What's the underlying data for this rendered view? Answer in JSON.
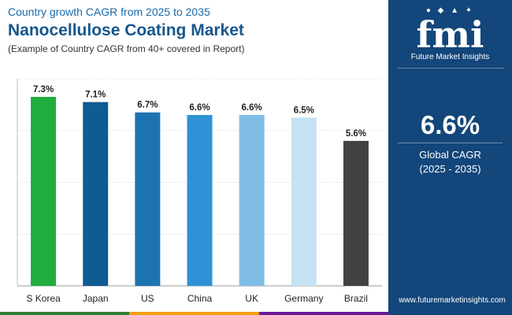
{
  "header": {
    "subtitle": "Country growth CAGR from 2025 to 2035",
    "title": "Nanocellulose Coating Market",
    "note": "(Example of Country CAGR from 40+ covered in Report)"
  },
  "brand": {
    "logo_mark": "fmi",
    "logo_text": "Future Market Insights",
    "website": "www.futuremarketinsights.com"
  },
  "summary": {
    "value": "6.6%",
    "label_line1": "Global CAGR",
    "label_line2": "(2025 - 2035)"
  },
  "colors": {
    "panel": "#13467a",
    "title": "#17578c",
    "strip": [
      "#2e7d32",
      "#f39c12",
      "#6a1b9a"
    ]
  },
  "chart_data": {
    "type": "bar",
    "title": "Nanocellulose Coating Market",
    "xlabel": "",
    "ylabel": "",
    "ylim": [
      0,
      8
    ],
    "grid": true,
    "categories": [
      "S Korea",
      "Japan",
      "US",
      "China",
      "UK",
      "Germany",
      "Brazil"
    ],
    "values": [
      7.3,
      7.1,
      6.7,
      6.6,
      6.6,
      6.5,
      5.6
    ],
    "data_labels": [
      "7.3%",
      "7.1%",
      "6.7%",
      "6.6%",
      "6.6%",
      "6.5%",
      "5.6%"
    ],
    "bar_colors": [
      "#1fad3e",
      "#0f5b93",
      "#1d73b1",
      "#2f92d6",
      "#7fbde6",
      "#c5e2f4",
      "#424242"
    ]
  }
}
